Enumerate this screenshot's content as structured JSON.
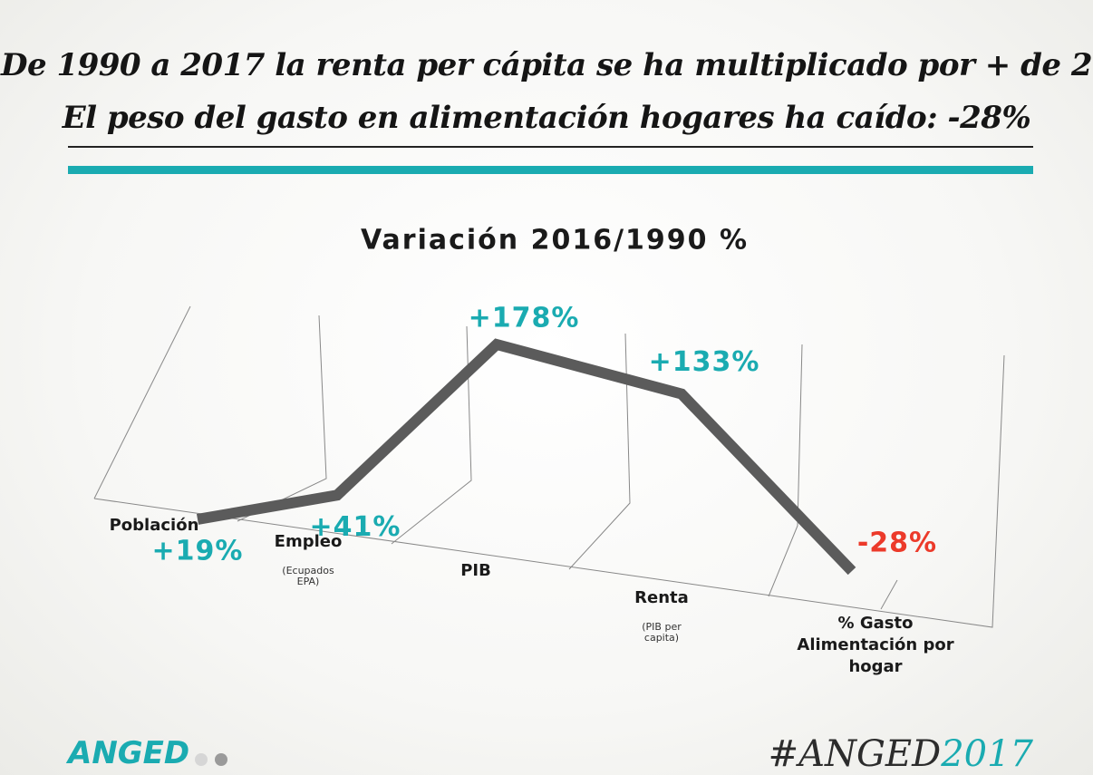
{
  "header": {
    "title_lines": [
      "De 1990 a 2017 la renta per cápita se ha multiplicado por + de 2",
      "El peso del gasto en alimentación hogares ha caído: -28%"
    ]
  },
  "chart_data": {
    "type": "line",
    "title": "Variación 2016/1990 %",
    "categories": [
      "Población",
      "Empleo",
      "PIB",
      "Renta",
      "% Gasto Alimentación por hogar"
    ],
    "category_notes": [
      null,
      "(Ecupados EPA)",
      null,
      "(PIB per capita)",
      null
    ],
    "values": [
      19,
      41,
      178,
      133,
      -28
    ],
    "value_labels": [
      "+19%",
      "+41%",
      "+178%",
      "+133%",
      "-28%"
    ],
    "color": "#5b5b5b",
    "positive_label_color": "#1aabb1",
    "negative_label_color": "#ec3a2a"
  },
  "footer": {
    "logo": "ANGED",
    "hashtag": "#ANGED",
    "hashtag_year": "2017"
  }
}
